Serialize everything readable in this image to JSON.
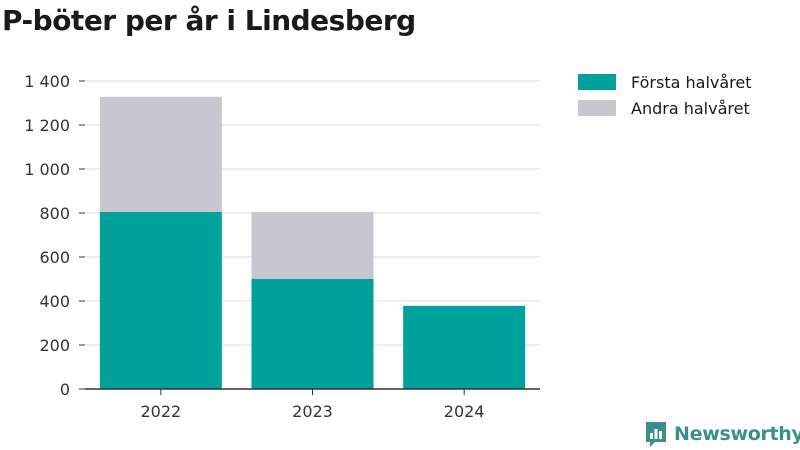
{
  "colors": {
    "first_half": "#00a19a",
    "second_half": "#c8c6d1",
    "grid": "#dddddd",
    "axis": "#333333",
    "brand": "#3a8f8a"
  },
  "title": "P-böter per år i Lindesberg",
  "legend": [
    {
      "label": "Första halvåret",
      "color": "#00a19a"
    },
    {
      "label": "Andra halvåret",
      "color": "#c8c6d1"
    }
  ],
  "brand": {
    "name": "Newsworthy",
    "icon": "newsworthy-logo-icon"
  },
  "chart_data": {
    "type": "bar",
    "stacked": true,
    "categories": [
      "2022",
      "2023",
      "2024"
    ],
    "series": [
      {
        "name": "Första halvåret",
        "values": [
          805,
          500,
          378
        ]
      },
      {
        "name": "Andra halvåret",
        "values": [
          523,
          305,
          0
        ]
      }
    ],
    "title": "P-böter per år i Lindesberg",
    "xlabel": "",
    "ylabel": "",
    "ylim": [
      0,
      1400
    ],
    "yticks": [
      0,
      200,
      400,
      600,
      800,
      1000,
      1200,
      1400
    ],
    "ytick_labels": [
      "0",
      "200",
      "400",
      "600",
      "800",
      "1 000",
      "1 200",
      "1 400"
    ],
    "grid": true,
    "legend_position": "top-right"
  }
}
